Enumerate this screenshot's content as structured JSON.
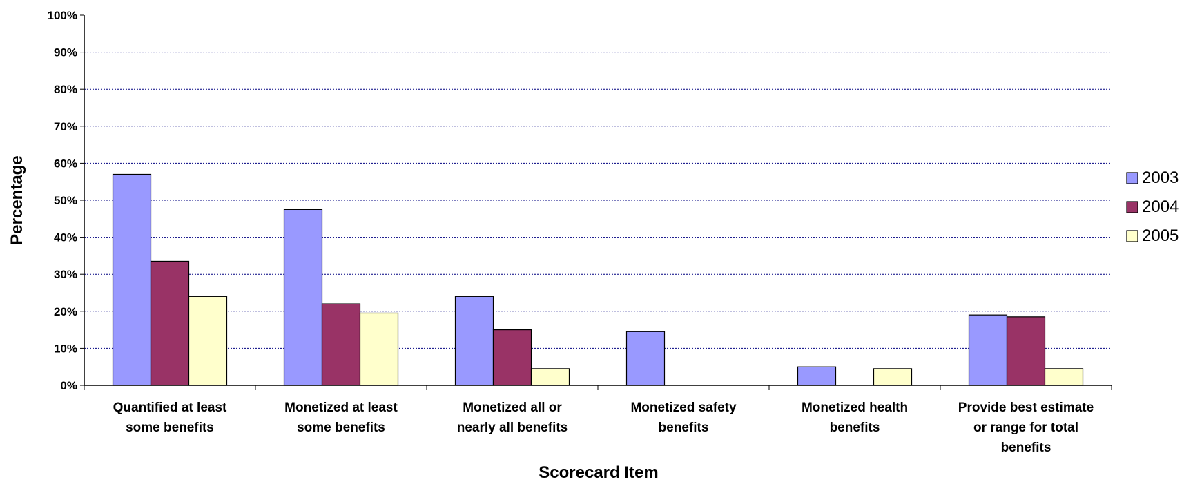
{
  "chart_data": {
    "type": "bar",
    "xlabel": "Scorecard Item",
    "ylabel": "Percentage",
    "ylim": [
      0,
      100
    ],
    "yticks": [
      "0%",
      "10%",
      "20%",
      "30%",
      "40%",
      "50%",
      "60%",
      "70%",
      "80%",
      "90%",
      "100%"
    ],
    "grid": "horizontal-dotted",
    "legend_position": "right",
    "categories": [
      [
        "Quantified at least",
        "some benefits"
      ],
      [
        "Monetized at least",
        "some benefits"
      ],
      [
        "Monetized all or",
        "nearly all benefits"
      ],
      [
        "Monetized safety",
        "benefits"
      ],
      [
        "Monetized health",
        "benefits"
      ],
      [
        "Provide best estimate",
        "or range for total",
        "benefits"
      ]
    ],
    "series": [
      {
        "name": "2003",
        "color": "#9999ff",
        "values": [
          57,
          47.5,
          24,
          14.5,
          5,
          19
        ]
      },
      {
        "name": "2004",
        "color": "#993366",
        "values": [
          33.5,
          22,
          15,
          0,
          0,
          18.5
        ]
      },
      {
        "name": "2005",
        "color": "#ffffcc",
        "values": [
          24,
          19.5,
          4.5,
          0,
          4.5,
          4.5
        ]
      }
    ]
  }
}
